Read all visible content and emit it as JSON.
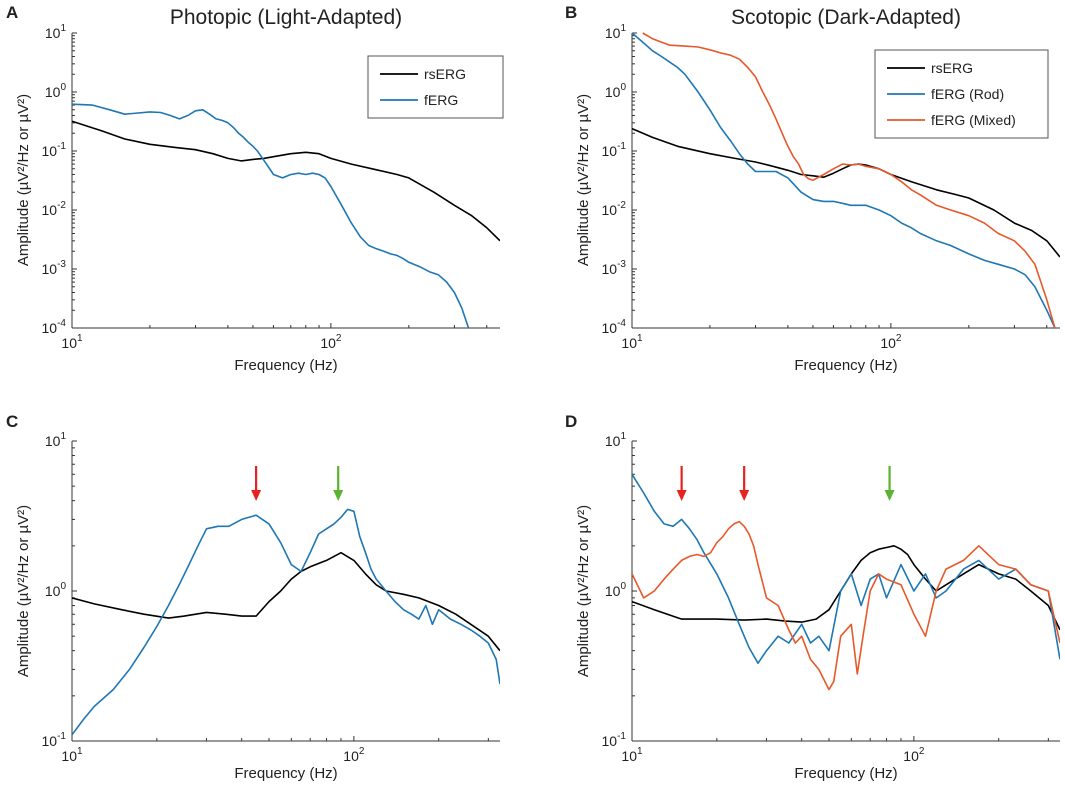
{
  "chart_data": [
    {
      "panel": "A",
      "type": "line",
      "title": "Photopic (Light-Adapted)",
      "xlabel": "Frequency (Hz)",
      "ylabel": "Amplitude (µV²/Hz or µV²)",
      "xscale": "log",
      "yscale": "log",
      "xlim": [
        10,
        450
      ],
      "ylim": [
        0.0001,
        10
      ],
      "x_ticks": [
        {
          "value": 10,
          "base": "10",
          "exp": "1"
        },
        {
          "value": 100,
          "base": "10",
          "exp": "2"
        }
      ],
      "y_ticks": [
        {
          "value": 0.0001,
          "base": "10",
          "exp": "-4"
        },
        {
          "value": 0.001,
          "base": "10",
          "exp": "-3"
        },
        {
          "value": 0.01,
          "base": "10",
          "exp": "-2"
        },
        {
          "value": 0.1,
          "base": "10",
          "exp": "-1"
        },
        {
          "value": 1,
          "base": "10",
          "exp": "0"
        },
        {
          "value": 10,
          "base": "10",
          "exp": "1"
        }
      ],
      "legend": "top-right",
      "series": [
        {
          "name": "rsERG",
          "color": "#000000",
          "x": [
            10,
            13,
            16,
            20,
            25,
            30,
            35,
            40,
            45,
            50,
            55,
            60,
            70,
            80,
            90,
            100,
            120,
            150,
            180,
            200,
            250,
            300,
            350,
            400,
            450
          ],
          "y": [
            0.32,
            0.22,
            0.16,
            0.13,
            0.115,
            0.105,
            0.09,
            0.075,
            0.068,
            0.072,
            0.075,
            0.08,
            0.09,
            0.095,
            0.09,
            0.075,
            0.06,
            0.048,
            0.04,
            0.035,
            0.02,
            0.012,
            0.008,
            0.005,
            0.003
          ]
        },
        {
          "name": "fERG",
          "color": "#1f77b4",
          "x": [
            10,
            12,
            14,
            16,
            18,
            20,
            22,
            24,
            26,
            28,
            30,
            32,
            34,
            36,
            38,
            40,
            42,
            44,
            46,
            48,
            50,
            52,
            55,
            60,
            65,
            70,
            75,
            80,
            85,
            90,
            95,
            100,
            110,
            120,
            130,
            140,
            150,
            160,
            170,
            180,
            190,
            200,
            220,
            240,
            260,
            280,
            300,
            320,
            340
          ],
          "y": [
            0.62,
            0.6,
            0.5,
            0.42,
            0.44,
            0.46,
            0.45,
            0.4,
            0.35,
            0.4,
            0.48,
            0.5,
            0.42,
            0.35,
            0.33,
            0.3,
            0.25,
            0.2,
            0.17,
            0.14,
            0.12,
            0.1,
            0.07,
            0.04,
            0.035,
            0.04,
            0.042,
            0.04,
            0.042,
            0.04,
            0.035,
            0.025,
            0.012,
            0.006,
            0.0035,
            0.0025,
            0.0022,
            0.002,
            0.0018,
            0.0017,
            0.0015,
            0.0013,
            0.0011,
            0.0009,
            0.0008,
            0.0006,
            0.0004,
            0.00022,
            0.0001
          ]
        }
      ]
    },
    {
      "panel": "B",
      "type": "line",
      "title": "Scotopic (Dark-Adapted)",
      "xlabel": "Frequency (Hz)",
      "ylabel": "Amplitude (µV²/Hz or µV²)",
      "xscale": "log",
      "yscale": "log",
      "xlim": [
        10,
        450
      ],
      "ylim": [
        0.0001,
        10
      ],
      "x_ticks": [
        {
          "value": 10,
          "base": "10",
          "exp": "1"
        },
        {
          "value": 100,
          "base": "10",
          "exp": "2"
        }
      ],
      "y_ticks": [
        {
          "value": 0.0001,
          "base": "10",
          "exp": "-4"
        },
        {
          "value": 0.001,
          "base": "10",
          "exp": "-3"
        },
        {
          "value": 0.01,
          "base": "10",
          "exp": "-2"
        },
        {
          "value": 0.1,
          "base": "10",
          "exp": "-1"
        },
        {
          "value": 1,
          "base": "10",
          "exp": "0"
        },
        {
          "value": 10,
          "base": "10",
          "exp": "1"
        }
      ],
      "legend": "top-right",
      "series": [
        {
          "name": "rsERG",
          "color": "#000000",
          "x": [
            10,
            12,
            15,
            20,
            25,
            30,
            35,
            40,
            45,
            50,
            55,
            60,
            65,
            70,
            75,
            80,
            90,
            100,
            120,
            150,
            180,
            200,
            250,
            300,
            350,
            400,
            450
          ],
          "y": [
            0.24,
            0.17,
            0.12,
            0.09,
            0.075,
            0.065,
            0.055,
            0.047,
            0.04,
            0.038,
            0.036,
            0.042,
            0.05,
            0.058,
            0.06,
            0.058,
            0.05,
            0.04,
            0.03,
            0.022,
            0.018,
            0.016,
            0.01,
            0.006,
            0.0045,
            0.003,
            0.0016
          ]
        },
        {
          "name": "fERG (Rod)",
          "color": "#1f77b4",
          "x": [
            10,
            11,
            12,
            13,
            14,
            15,
            16,
            17,
            18,
            20,
            22,
            24,
            26,
            28,
            30,
            33,
            36,
            40,
            45,
            50,
            55,
            60,
            65,
            70,
            75,
            80,
            90,
            100,
            110,
            120,
            130,
            150,
            170,
            200,
            230,
            260,
            300,
            330,
            360,
            400,
            430
          ],
          "y": [
            10,
            7,
            5,
            4,
            3.2,
            2.6,
            2.0,
            1.4,
            1.0,
            0.5,
            0.25,
            0.15,
            0.09,
            0.06,
            0.045,
            0.045,
            0.045,
            0.035,
            0.02,
            0.015,
            0.014,
            0.014,
            0.013,
            0.012,
            0.012,
            0.012,
            0.01,
            0.008,
            0.006,
            0.005,
            0.004,
            0.003,
            0.0025,
            0.0018,
            0.0014,
            0.0012,
            0.001,
            0.0008,
            0.0005,
            0.0002,
            0.0001
          ]
        },
        {
          "name": "fERG (Mixed)",
          "color": "#e8582a",
          "x": [
            11,
            12,
            13,
            14,
            16,
            18,
            20,
            22,
            24,
            26,
            28,
            30,
            32,
            34,
            36,
            38,
            40,
            42,
            44,
            46,
            48,
            50,
            55,
            60,
            65,
            70,
            75,
            80,
            90,
            100,
            110,
            120,
            130,
            150,
            170,
            200,
            230,
            260,
            300,
            330,
            360,
            400,
            430
          ],
          "y": [
            10,
            8,
            7,
            6.2,
            6,
            5.8,
            5.2,
            4.6,
            4.2,
            3.6,
            2.6,
            1.8,
            1.0,
            0.6,
            0.35,
            0.2,
            0.12,
            0.08,
            0.06,
            0.04,
            0.034,
            0.032,
            0.04,
            0.05,
            0.06,
            0.058,
            0.06,
            0.055,
            0.05,
            0.04,
            0.03,
            0.022,
            0.018,
            0.012,
            0.01,
            0.008,
            0.006,
            0.004,
            0.003,
            0.002,
            0.0012,
            0.0003,
            0.0001
          ]
        }
      ]
    },
    {
      "panel": "C",
      "type": "line",
      "title": "",
      "xlabel": "Frequency (Hz)",
      "ylabel": "Amplitude (µV²/Hz or µV²)",
      "xscale": "log",
      "yscale": "log",
      "xlim": [
        10,
        330
      ],
      "ylim": [
        0.1,
        10
      ],
      "x_ticks": [
        {
          "value": 10,
          "base": "10",
          "exp": "1"
        },
        {
          "value": 100,
          "base": "10",
          "exp": "2"
        }
      ],
      "y_ticks": [
        {
          "value": 0.1,
          "base": "10",
          "exp": "-1"
        },
        {
          "value": 1,
          "base": "10",
          "exp": "0"
        },
        {
          "value": 10,
          "base": "10",
          "exp": "1"
        }
      ],
      "arrows": [
        {
          "x": 45,
          "color": "#e8231f"
        },
        {
          "x": 88,
          "color": "#5cb231"
        }
      ],
      "series": [
        {
          "name": "rsERG",
          "color": "#000000",
          "x": [
            10,
            12,
            15,
            18,
            22,
            25,
            30,
            35,
            40,
            45,
            50,
            55,
            60,
            65,
            70,
            80,
            90,
            100,
            110,
            120,
            130,
            150,
            170,
            200,
            230,
            260,
            300,
            330
          ],
          "y": [
            0.9,
            0.82,
            0.75,
            0.7,
            0.66,
            0.68,
            0.72,
            0.7,
            0.68,
            0.68,
            0.85,
            1.0,
            1.2,
            1.35,
            1.45,
            1.6,
            1.8,
            1.6,
            1.3,
            1.1,
            1.0,
            0.95,
            0.9,
            0.8,
            0.7,
            0.6,
            0.5,
            0.4
          ]
        },
        {
          "name": "fERG",
          "color": "#1f77b4",
          "x": [
            10,
            11,
            12,
            14,
            16,
            18,
            20,
            22,
            24,
            26,
            28,
            30,
            33,
            36,
            40,
            45,
            50,
            55,
            60,
            65,
            70,
            75,
            80,
            85,
            90,
            95,
            100,
            105,
            110,
            115,
            120,
            130,
            140,
            150,
            160,
            170,
            180,
            190,
            200,
            220,
            240,
            260,
            280,
            300,
            320,
            330
          ],
          "y": [
            0.11,
            0.14,
            0.17,
            0.22,
            0.3,
            0.42,
            0.58,
            0.8,
            1.1,
            1.5,
            2.0,
            2.6,
            2.7,
            2.7,
            3.0,
            3.2,
            2.8,
            2.1,
            1.5,
            1.35,
            1.8,
            2.4,
            2.6,
            2.8,
            3.1,
            3.5,
            3.4,
            2.3,
            1.8,
            1.4,
            1.2,
            1.0,
            0.85,
            0.75,
            0.7,
            0.65,
            0.8,
            0.6,
            0.75,
            0.65,
            0.6,
            0.55,
            0.5,
            0.45,
            0.35,
            0.24
          ]
        }
      ]
    },
    {
      "panel": "D",
      "type": "line",
      "title": "",
      "xlabel": "Frequency (Hz)",
      "ylabel": "Amplitude (µV²/Hz or µV²)",
      "xscale": "log",
      "yscale": "log",
      "xlim": [
        10,
        330
      ],
      "ylim": [
        0.1,
        10
      ],
      "x_ticks": [
        {
          "value": 10,
          "base": "10",
          "exp": "1"
        },
        {
          "value": 100,
          "base": "10",
          "exp": "2"
        }
      ],
      "y_ticks": [
        {
          "value": 0.1,
          "base": "10",
          "exp": "-1"
        },
        {
          "value": 1,
          "base": "10",
          "exp": "0"
        },
        {
          "value": 10,
          "base": "10",
          "exp": "1"
        }
      ],
      "arrows": [
        {
          "x": 15,
          "color": "#e8231f"
        },
        {
          "x": 25,
          "color": "#e8231f"
        },
        {
          "x": 82,
          "color": "#5cb231"
        }
      ],
      "series": [
        {
          "name": "rsERG",
          "color": "#000000",
          "x": [
            10,
            12,
            15,
            20,
            25,
            30,
            35,
            40,
            45,
            50,
            55,
            60,
            65,
            70,
            75,
            80,
            85,
            90,
            95,
            100,
            110,
            120,
            130,
            150,
            170,
            200,
            230,
            260,
            300,
            330
          ],
          "y": [
            0.85,
            0.75,
            0.65,
            0.65,
            0.64,
            0.65,
            0.63,
            0.62,
            0.65,
            0.75,
            1.0,
            1.3,
            1.6,
            1.8,
            1.9,
            1.95,
            2.0,
            1.9,
            1.75,
            1.5,
            1.2,
            1.0,
            1.1,
            1.3,
            1.5,
            1.3,
            1.2,
            1.0,
            0.8,
            0.55
          ]
        },
        {
          "name": "fERG (Rod)",
          "color": "#1f77b4",
          "x": [
            10,
            11,
            12,
            13,
            14,
            15,
            16,
            17,
            18,
            20,
            22,
            24,
            26,
            28,
            30,
            33,
            36,
            40,
            43,
            46,
            50,
            55,
            60,
            65,
            70,
            75,
            80,
            90,
            100,
            110,
            120,
            130,
            150,
            170,
            200,
            230,
            260,
            300,
            330
          ],
          "y": [
            6,
            4.5,
            3.4,
            2.8,
            2.7,
            3.0,
            2.6,
            2.2,
            1.8,
            1.3,
            0.9,
            0.6,
            0.42,
            0.33,
            0.4,
            0.5,
            0.45,
            0.6,
            0.45,
            0.5,
            0.4,
            1.0,
            1.3,
            0.8,
            1.2,
            1.3,
            0.9,
            1.5,
            1.0,
            1.3,
            0.9,
            1.0,
            1.4,
            1.6,
            1.2,
            1.4,
            1.1,
            1.0,
            0.35
          ]
        },
        {
          "name": "fERG (Mixed)",
          "color": "#e8582a",
          "x": [
            10,
            11,
            12,
            13,
            14,
            15,
            16,
            17,
            18,
            19,
            20,
            21,
            22,
            23,
            24,
            25,
            26,
            27,
            28,
            30,
            33,
            36,
            38,
            40,
            43,
            46,
            50,
            52,
            55,
            60,
            63,
            66,
            70,
            75,
            80,
            90,
            100,
            110,
            120,
            130,
            150,
            170,
            200,
            230,
            260,
            300,
            330
          ],
          "y": [
            1.3,
            0.9,
            1.0,
            1.2,
            1.4,
            1.6,
            1.7,
            1.75,
            1.7,
            1.8,
            2.1,
            2.3,
            2.6,
            2.8,
            2.9,
            2.7,
            2.4,
            2.0,
            1.5,
            0.9,
            0.8,
            0.55,
            0.45,
            0.5,
            0.35,
            0.3,
            0.22,
            0.25,
            0.5,
            0.6,
            0.28,
            0.5,
            1.0,
            1.3,
            1.2,
            1.1,
            0.7,
            0.5,
            1.0,
            1.4,
            1.6,
            2.0,
            1.5,
            1.4,
            1.1,
            1.0,
            0.45
          ]
        }
      ]
    }
  ],
  "panel_letters": [
    "A",
    "B",
    "C",
    "D"
  ]
}
